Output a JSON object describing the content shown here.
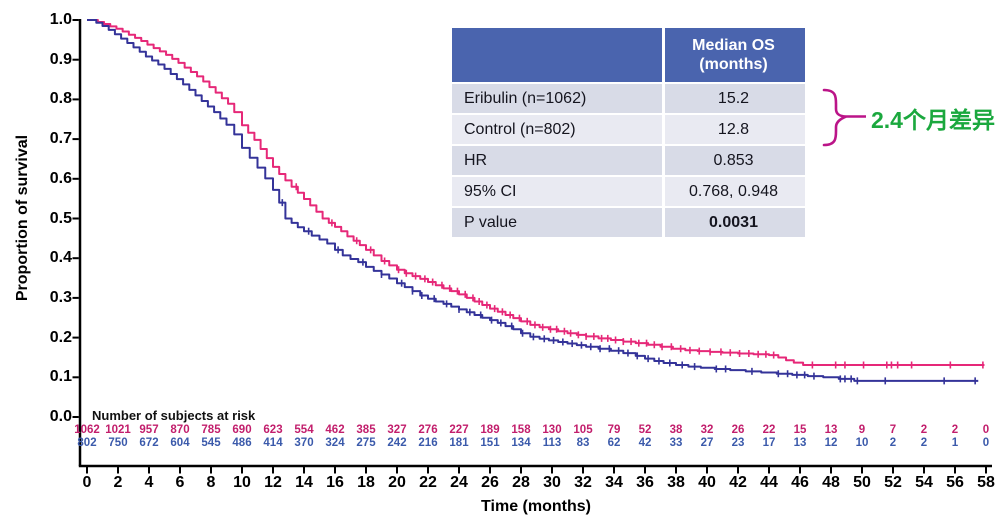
{
  "chart_data": {
    "type": "line",
    "subtype": "kaplan-meier-step-survival",
    "title": "",
    "xlabel": "Time (months)",
    "ylabel": "Proportion of survival",
    "xlim": [
      0,
      58
    ],
    "ylim": [
      0.0,
      1.0
    ],
    "x_ticks": [
      0,
      2,
      4,
      6,
      8,
      10,
      12,
      14,
      16,
      18,
      20,
      22,
      24,
      26,
      28,
      30,
      32,
      34,
      36,
      38,
      40,
      42,
      44,
      46,
      48,
      50,
      52,
      54,
      56,
      58
    ],
    "y_tick_labels": [
      "1.0",
      "0.9",
      "0.8",
      "0.7",
      "0.6",
      "0.5",
      "0.4",
      "0.3",
      "0.2",
      "0.1",
      "0.0"
    ],
    "grid": false,
    "legend": "none (series identified in summary table)",
    "series": [
      {
        "name": "Eribulin (n=1062)",
        "color": "#E62878",
        "median_os_months": 15.2,
        "points": [
          [
            0,
            1.0
          ],
          [
            0.7,
            0.995
          ],
          [
            1.1,
            0.99
          ],
          [
            1.5,
            0.984
          ],
          [
            1.9,
            0.978
          ],
          [
            2.3,
            0.971
          ],
          [
            2.7,
            0.963
          ],
          [
            3.1,
            0.955
          ],
          [
            3.5,
            0.947
          ],
          [
            3.9,
            0.938
          ],
          [
            4.3,
            0.929
          ],
          [
            4.7,
            0.921
          ],
          [
            5.1,
            0.912
          ],
          [
            5.5,
            0.902
          ],
          [
            5.9,
            0.892
          ],
          [
            6.3,
            0.88
          ],
          [
            6.7,
            0.869
          ],
          [
            7.1,
            0.858
          ],
          [
            7.5,
            0.845
          ],
          [
            7.9,
            0.831
          ],
          [
            8.3,
            0.817
          ],
          [
            8.7,
            0.803
          ],
          [
            9.1,
            0.789
          ],
          [
            9.5,
            0.768
          ],
          [
            10,
            0.735
          ],
          [
            10.4,
            0.716
          ],
          [
            10.8,
            0.698
          ],
          [
            11.2,
            0.675
          ],
          [
            11.6,
            0.652
          ],
          [
            12,
            0.63
          ],
          [
            12.4,
            0.612
          ],
          [
            12.8,
            0.596
          ],
          [
            13.2,
            0.58
          ],
          [
            13.6,
            0.565
          ],
          [
            14,
            0.549
          ],
          [
            14.4,
            0.533
          ],
          [
            14.8,
            0.517
          ],
          [
            15.2,
            0.5
          ],
          [
            15.6,
            0.489
          ],
          [
            16,
            0.479
          ],
          [
            16.4,
            0.468
          ],
          [
            16.8,
            0.455
          ],
          [
            17.2,
            0.444
          ],
          [
            17.6,
            0.433
          ],
          [
            18,
            0.421
          ],
          [
            18.5,
            0.407
          ],
          [
            19,
            0.393
          ],
          [
            19.5,
            0.382
          ],
          [
            20,
            0.371
          ],
          [
            20.5,
            0.362
          ],
          [
            21,
            0.355
          ],
          [
            21.5,
            0.348
          ],
          [
            22,
            0.34
          ],
          [
            22.5,
            0.332
          ],
          [
            23,
            0.324
          ],
          [
            23.5,
            0.317
          ],
          [
            24,
            0.309
          ],
          [
            24.5,
            0.3
          ],
          [
            25,
            0.291
          ],
          [
            25.5,
            0.282
          ],
          [
            26,
            0.273
          ],
          [
            26.5,
            0.265
          ],
          [
            27,
            0.257
          ],
          [
            27.5,
            0.249
          ],
          [
            28,
            0.241
          ],
          [
            28.6,
            0.232
          ],
          [
            29.2,
            0.226
          ],
          [
            29.8,
            0.221
          ],
          [
            30.4,
            0.216
          ],
          [
            31,
            0.211
          ],
          [
            31.6,
            0.207
          ],
          [
            32.2,
            0.203
          ],
          [
            33,
            0.198
          ],
          [
            33.8,
            0.194
          ],
          [
            34.6,
            0.19
          ],
          [
            35.4,
            0.186
          ],
          [
            36.2,
            0.182
          ],
          [
            37,
            0.177
          ],
          [
            37.8,
            0.172
          ],
          [
            38.6,
            0.168
          ],
          [
            39.4,
            0.166
          ],
          [
            40.2,
            0.164
          ],
          [
            41,
            0.162
          ],
          [
            42,
            0.16
          ],
          [
            43,
            0.158
          ],
          [
            44,
            0.156
          ],
          [
            44.6,
            0.15
          ],
          [
            45.1,
            0.143
          ],
          [
            45.6,
            0.137
          ],
          [
            46.2,
            0.131
          ],
          [
            57.9,
            0.131
          ]
        ],
        "censor_times": [
          13.5,
          15.8,
          17.4,
          18.3,
          19.2,
          20.1,
          20.6,
          21.2,
          21.8,
          22.3,
          22.9,
          23.4,
          23.9,
          24.4,
          24.9,
          25.3,
          25.8,
          26.3,
          26.8,
          27.3,
          27.9,
          28.4,
          28.9,
          29.4,
          29.9,
          30.3,
          30.8,
          31.2,
          31.7,
          32.2,
          32.7,
          33.2,
          33.6,
          34.1,
          34.6,
          35.1,
          35.6,
          36.1,
          36.6,
          37.1,
          37.7,
          38.3,
          38.9,
          39.5,
          40.2,
          40.9,
          41.5,
          42.1,
          42.7,
          43.3,
          43.8,
          44.3,
          46.8,
          48.3,
          48.9,
          50.1,
          51.6,
          51.9,
          52.3,
          53.2,
          55.7,
          57.8
        ]
      },
      {
        "name": "Control (n=802)",
        "color": "#343399",
        "median_os_months": 12.8,
        "points": [
          [
            0,
            1.0
          ],
          [
            0.6,
            0.993
          ],
          [
            1,
            0.985
          ],
          [
            1.4,
            0.975
          ],
          [
            1.8,
            0.964
          ],
          [
            2.2,
            0.953
          ],
          [
            2.6,
            0.942
          ],
          [
            3,
            0.931
          ],
          [
            3.4,
            0.92
          ],
          [
            3.8,
            0.908
          ],
          [
            4.2,
            0.898
          ],
          [
            4.6,
            0.888
          ],
          [
            5,
            0.877
          ],
          [
            5.4,
            0.864
          ],
          [
            5.8,
            0.851
          ],
          [
            6.2,
            0.838
          ],
          [
            6.6,
            0.824
          ],
          [
            7,
            0.81
          ],
          [
            7.4,
            0.796
          ],
          [
            7.8,
            0.782
          ],
          [
            8.2,
            0.768
          ],
          [
            8.6,
            0.752
          ],
          [
            9,
            0.736
          ],
          [
            9.5,
            0.712
          ],
          [
            10,
            0.678
          ],
          [
            10.5,
            0.653
          ],
          [
            11,
            0.628
          ],
          [
            11.5,
            0.601
          ],
          [
            12,
            0.572
          ],
          [
            12.4,
            0.54
          ],
          [
            12.8,
            0.5
          ],
          [
            13.2,
            0.489
          ],
          [
            13.6,
            0.478
          ],
          [
            14,
            0.468
          ],
          [
            14.5,
            0.457
          ],
          [
            15,
            0.447
          ],
          [
            15.5,
            0.437
          ],
          [
            16,
            0.421
          ],
          [
            16.5,
            0.407
          ],
          [
            17,
            0.398
          ],
          [
            17.5,
            0.39
          ],
          [
            18,
            0.378
          ],
          [
            18.5,
            0.368
          ],
          [
            19,
            0.359
          ],
          [
            19.5,
            0.349
          ],
          [
            20,
            0.337
          ],
          [
            20.5,
            0.327
          ],
          [
            21,
            0.317
          ],
          [
            21.5,
            0.306
          ],
          [
            22,
            0.298
          ],
          [
            22.5,
            0.291
          ],
          [
            23,
            0.285
          ],
          [
            23.5,
            0.278
          ],
          [
            24,
            0.271
          ],
          [
            24.5,
            0.264
          ],
          [
            25,
            0.257
          ],
          [
            25.5,
            0.25
          ],
          [
            26,
            0.244
          ],
          [
            26.5,
            0.237
          ],
          [
            27,
            0.229
          ],
          [
            27.5,
            0.221
          ],
          [
            28,
            0.211
          ],
          [
            28.6,
            0.202
          ],
          [
            29.2,
            0.197
          ],
          [
            29.8,
            0.193
          ],
          [
            30.4,
            0.189
          ],
          [
            31,
            0.185
          ],
          [
            31.6,
            0.181
          ],
          [
            32.2,
            0.177
          ],
          [
            33,
            0.172
          ],
          [
            33.8,
            0.167
          ],
          [
            34.6,
            0.161
          ],
          [
            35.4,
            0.154
          ],
          [
            36,
            0.147
          ],
          [
            36.6,
            0.141
          ],
          [
            37.2,
            0.136
          ],
          [
            38,
            0.131
          ],
          [
            38.8,
            0.127
          ],
          [
            39.6,
            0.124
          ],
          [
            40.5,
            0.121
          ],
          [
            41.5,
            0.118
          ],
          [
            42.5,
            0.115
          ],
          [
            43.5,
            0.112
          ],
          [
            44.5,
            0.109
          ],
          [
            45.5,
            0.106
          ],
          [
            46.5,
            0.103
          ],
          [
            47.5,
            0.1
          ],
          [
            48.5,
            0.096
          ],
          [
            49.5,
            0.091
          ],
          [
            57.5,
            0.091
          ]
        ],
        "censor_times": [
          12.6,
          14.3,
          16.2,
          17.8,
          19,
          20.3,
          21,
          21.6,
          22.4,
          23.2,
          24,
          24.7,
          25.4,
          26.1,
          26.7,
          27.4,
          28.1,
          28.8,
          29.5,
          30.1,
          30.7,
          31.3,
          31.9,
          32.5,
          33.1,
          33.7,
          34.3,
          34.9,
          35.5,
          36.2,
          36.9,
          37.6,
          38.4,
          39.2,
          40.6,
          41.2,
          42.9,
          44.6,
          45.2,
          45.8,
          46.3,
          46.9,
          48.6,
          48.9,
          49.3,
          49.7,
          51.5,
          55.3,
          57.3
        ]
      }
    ],
    "number_at_risk": {
      "label": "Number of subjects at risk",
      "times": [
        0,
        2,
        4,
        6,
        8,
        10,
        12,
        14,
        16,
        18,
        20,
        22,
        24,
        26,
        28,
        30,
        32,
        34,
        36,
        38,
        40,
        42,
        44,
        46,
        48,
        50,
        52,
        54,
        56,
        58
      ],
      "rows": [
        {
          "name": "Eribulin",
          "text_color": "#C21E6C",
          "counts": [
            1062,
            1021,
            957,
            870,
            785,
            690,
            623,
            554,
            462,
            385,
            327,
            276,
            227,
            189,
            158,
            130,
            105,
            79,
            52,
            38,
            32,
            26,
            22,
            15,
            13,
            9,
            7,
            2,
            2,
            0
          ]
        },
        {
          "name": "Control",
          "text_color": "#3B5AAB",
          "counts": [
            802,
            750,
            672,
            604,
            545,
            486,
            414,
            370,
            324,
            275,
            242,
            216,
            181,
            151,
            134,
            113,
            83,
            62,
            42,
            33,
            27,
            23,
            17,
            13,
            12,
            10,
            2,
            2,
            1,
            0
          ]
        }
      ]
    }
  },
  "summary_table": {
    "header": {
      "col1": "",
      "col2_line1": "Median OS",
      "col2_line2": "(months)"
    },
    "header_bg": "#4A64AE",
    "row_bg_dark": "#D8DBE7",
    "row_bg_light": "#E9EAF2",
    "rows": [
      {
        "label": "Eribulin (n=1062)",
        "value": "15.2"
      },
      {
        "label": "Control (n=802)",
        "value": "12.8"
      },
      {
        "label": "HR",
        "value": "0.853"
      },
      {
        "label": "95% CI",
        "value": "0.768, 0.948"
      },
      {
        "label": "P value",
        "value": "0.0031"
      }
    ]
  },
  "annotation": {
    "text": "2.4个月差异",
    "text_color": "#1BA83E",
    "brace_color": "#BB1488"
  }
}
